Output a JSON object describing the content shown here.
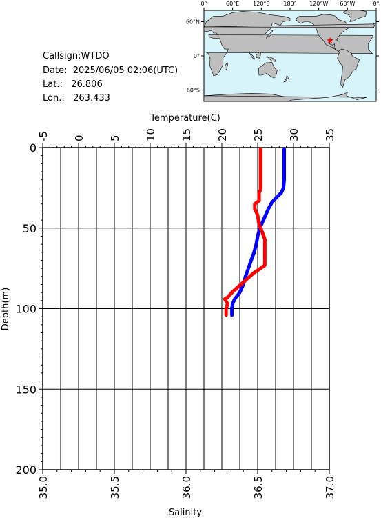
{
  "station": {
    "callsign_label": "Callsign:",
    "callsign": "WTDO",
    "date_label": "Date:",
    "date": "2025/06/05 02:06(UTC)",
    "lat_label": "Lat.:",
    "lat": "26.806",
    "lon_label": "Lon.:",
    "lon": "263.433"
  },
  "map": {
    "lon_ticks": [
      "0°",
      "60°E",
      "120°E",
      "180°",
      "120°W",
      "60°W",
      "0°"
    ],
    "lat_ticks": [
      "60°N",
      "0°",
      "60°S"
    ],
    "ocean_color": "#d8f4fb",
    "land_color": "#bebebe",
    "marker_color": "#ff0000",
    "marker": {
      "lat": 26.806,
      "lon": 263.433
    }
  },
  "chart_data": {
    "type": "line",
    "ylabel": "Depth(m)",
    "top_axis_label": "Temperature(C)",
    "bottom_axis_label": "Salinity",
    "depth_range": [
      0,
      200
    ],
    "depth_ticks": [
      0,
      50,
      100,
      150,
      200
    ],
    "temperature_range": [
      -5,
      35
    ],
    "temperature_ticks": [
      -5,
      0,
      5,
      10,
      15,
      20,
      25,
      30,
      35
    ],
    "salinity_range": [
      35.0,
      37.0
    ],
    "salinity_ticks": [
      "35.0",
      "35.5",
      "36.0",
      "36.5",
      "37.0"
    ],
    "grid": true,
    "series": [
      {
        "quantity": "temperature",
        "axis": "top",
        "color": "#0000ff",
        "points": [
          {
            "depth": 1,
            "value": 28.7
          },
          {
            "depth": 10,
            "value": 28.7
          },
          {
            "depth": 20,
            "value": 28.7
          },
          {
            "depth": 25,
            "value": 28.6
          },
          {
            "depth": 28,
            "value": 28.3
          },
          {
            "depth": 31,
            "value": 27.6
          },
          {
            "depth": 34,
            "value": 27.0
          },
          {
            "depth": 38,
            "value": 26.5
          },
          {
            "depth": 42,
            "value": 26.1
          },
          {
            "depth": 46,
            "value": 25.7
          },
          {
            "depth": 50,
            "value": 25.3
          },
          {
            "depth": 55,
            "value": 25.0
          },
          {
            "depth": 60,
            "value": 24.8
          },
          {
            "depth": 65,
            "value": 24.5
          },
          {
            "depth": 70,
            "value": 24.1
          },
          {
            "depth": 75,
            "value": 23.7
          },
          {
            "depth": 80,
            "value": 23.3
          },
          {
            "depth": 85,
            "value": 23.0
          },
          {
            "depth": 90,
            "value": 22.5
          },
          {
            "depth": 94,
            "value": 21.8
          },
          {
            "depth": 97,
            "value": 21.5
          },
          {
            "depth": 100,
            "value": 21.4
          },
          {
            "depth": 104,
            "value": 21.4
          }
        ]
      },
      {
        "quantity": "salinity",
        "axis": "bottom",
        "color": "#ff0000",
        "points": [
          {
            "depth": 1,
            "value": 36.52
          },
          {
            "depth": 10,
            "value": 36.52
          },
          {
            "depth": 20,
            "value": 36.52
          },
          {
            "depth": 26,
            "value": 36.52
          },
          {
            "depth": 28,
            "value": 36.51
          },
          {
            "depth": 33,
            "value": 36.51
          },
          {
            "depth": 35,
            "value": 36.48
          },
          {
            "depth": 38,
            "value": 36.48
          },
          {
            "depth": 42,
            "value": 36.5
          },
          {
            "depth": 48,
            "value": 36.51
          },
          {
            "depth": 52,
            "value": 36.53
          },
          {
            "depth": 57,
            "value": 36.55
          },
          {
            "depth": 63,
            "value": 36.55
          },
          {
            "depth": 68,
            "value": 36.55
          },
          {
            "depth": 73,
            "value": 36.55
          },
          {
            "depth": 75,
            "value": 36.52
          },
          {
            "depth": 78,
            "value": 36.47
          },
          {
            "depth": 82,
            "value": 36.42
          },
          {
            "depth": 86,
            "value": 36.37
          },
          {
            "depth": 90,
            "value": 36.32
          },
          {
            "depth": 93,
            "value": 36.29
          },
          {
            "depth": 94,
            "value": 36.27
          },
          {
            "depth": 97,
            "value": 36.29
          },
          {
            "depth": 100,
            "value": 36.28
          },
          {
            "depth": 104,
            "value": 36.28
          }
        ]
      }
    ]
  }
}
